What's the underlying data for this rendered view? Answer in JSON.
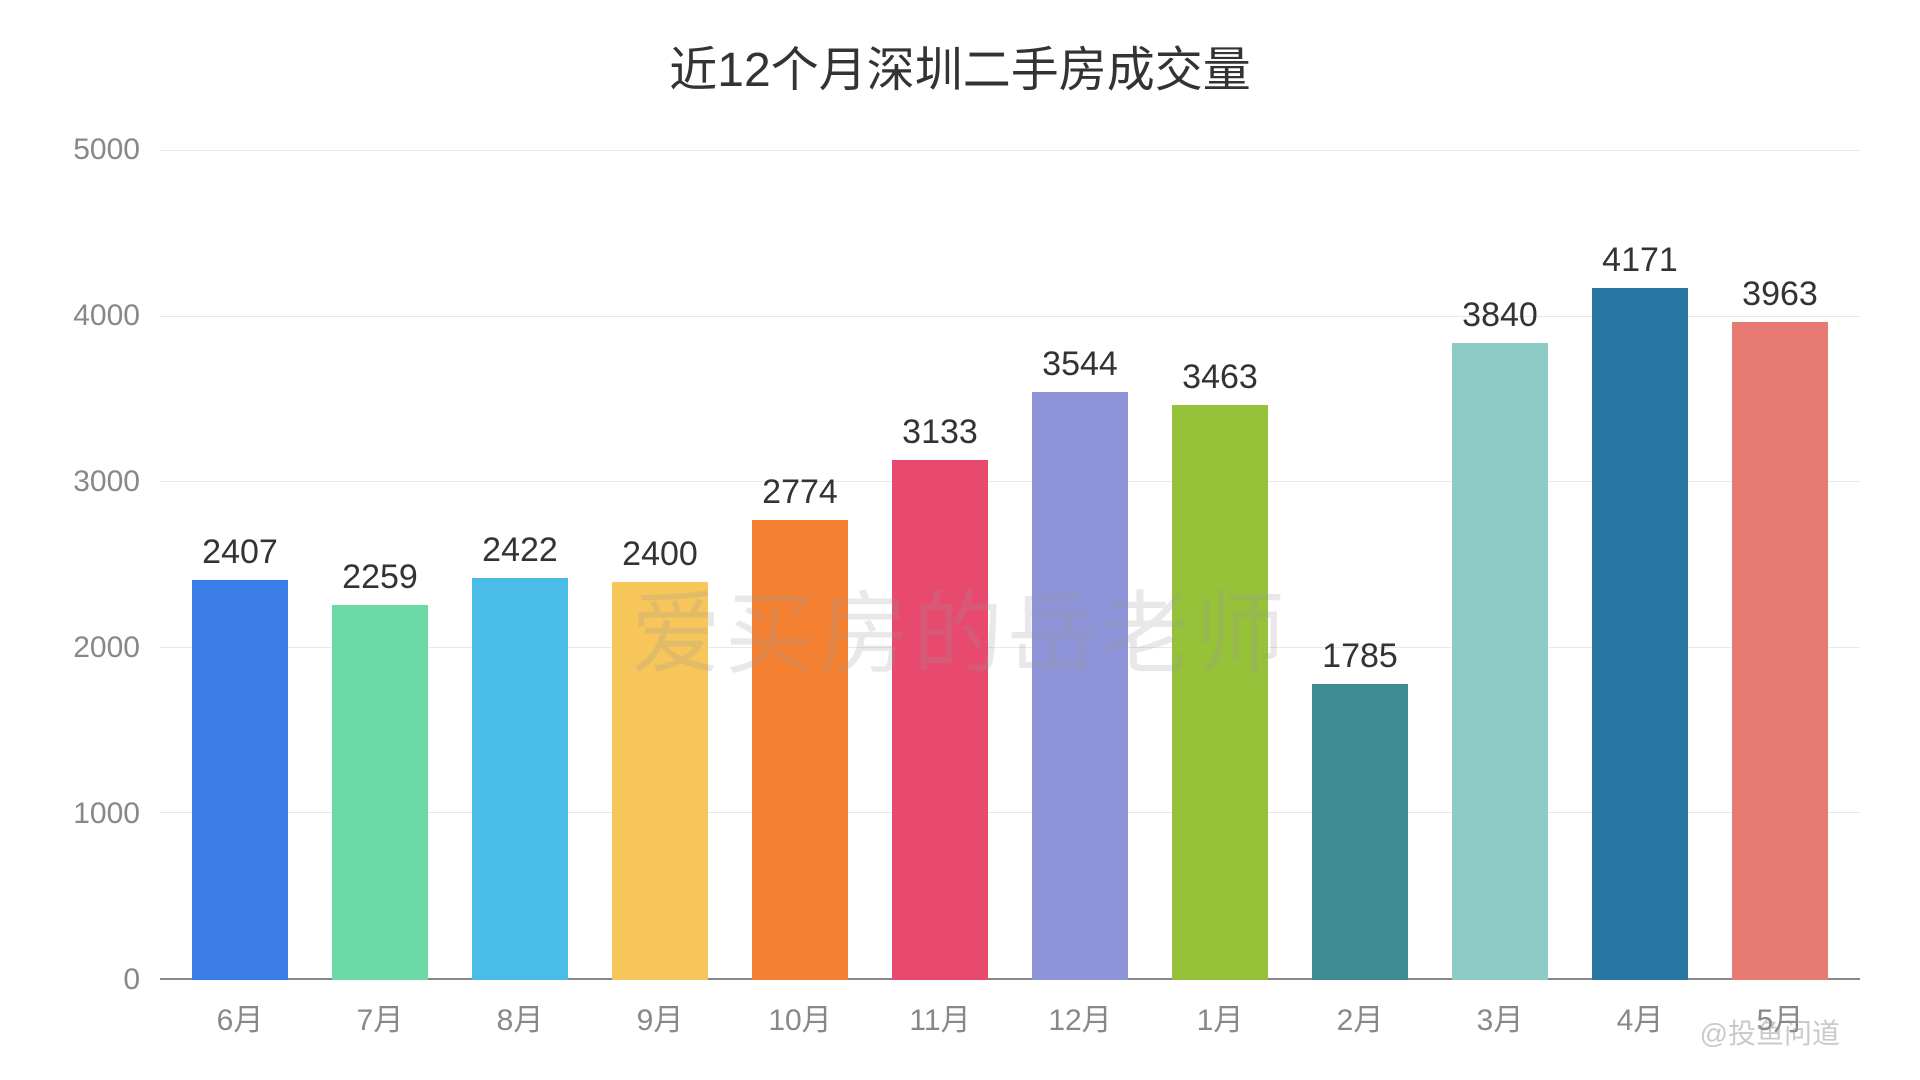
{
  "chart": {
    "type": "bar",
    "title": "近12个月深圳二手房成交量",
    "title_fontsize": 48,
    "title_color": "#333333",
    "categories": [
      "6月",
      "7月",
      "8月",
      "9月",
      "10月",
      "11月",
      "12月",
      "1月",
      "2月",
      "3月",
      "4月",
      "5月"
    ],
    "values": [
      2407,
      2259,
      2422,
      2400,
      2774,
      3133,
      3544,
      3463,
      1785,
      3840,
      4171,
      3963
    ],
    "bar_colors": [
      "#3b7ee8",
      "#6bd8a6",
      "#4abce8",
      "#f6c65a",
      "#f58232",
      "#e84a6d",
      "#8d94d8",
      "#96c23a",
      "#3d8c94",
      "#8ecbc4",
      "#2876a2",
      "#e87a74"
    ],
    "ylim": [
      0,
      5000
    ],
    "ytick_step": 1000,
    "ytick_labels": [
      "5000",
      "4000",
      "3000",
      "2000",
      "1000",
      "0"
    ],
    "value_label_fontsize": 34,
    "value_label_color": "#333333",
    "axis_label_fontsize": 30,
    "axis_label_color": "#888888",
    "background_color": "#ffffff",
    "grid_color": "#e8e8e8",
    "axis_line_color": "#888888",
    "bar_width": 0.68,
    "watermark_text": "爱买房的岳老师",
    "watermark_color": "rgba(150,150,150,0.22)",
    "watermark_fontsize": 90,
    "bottom_watermark": "@投鱼问道"
  }
}
